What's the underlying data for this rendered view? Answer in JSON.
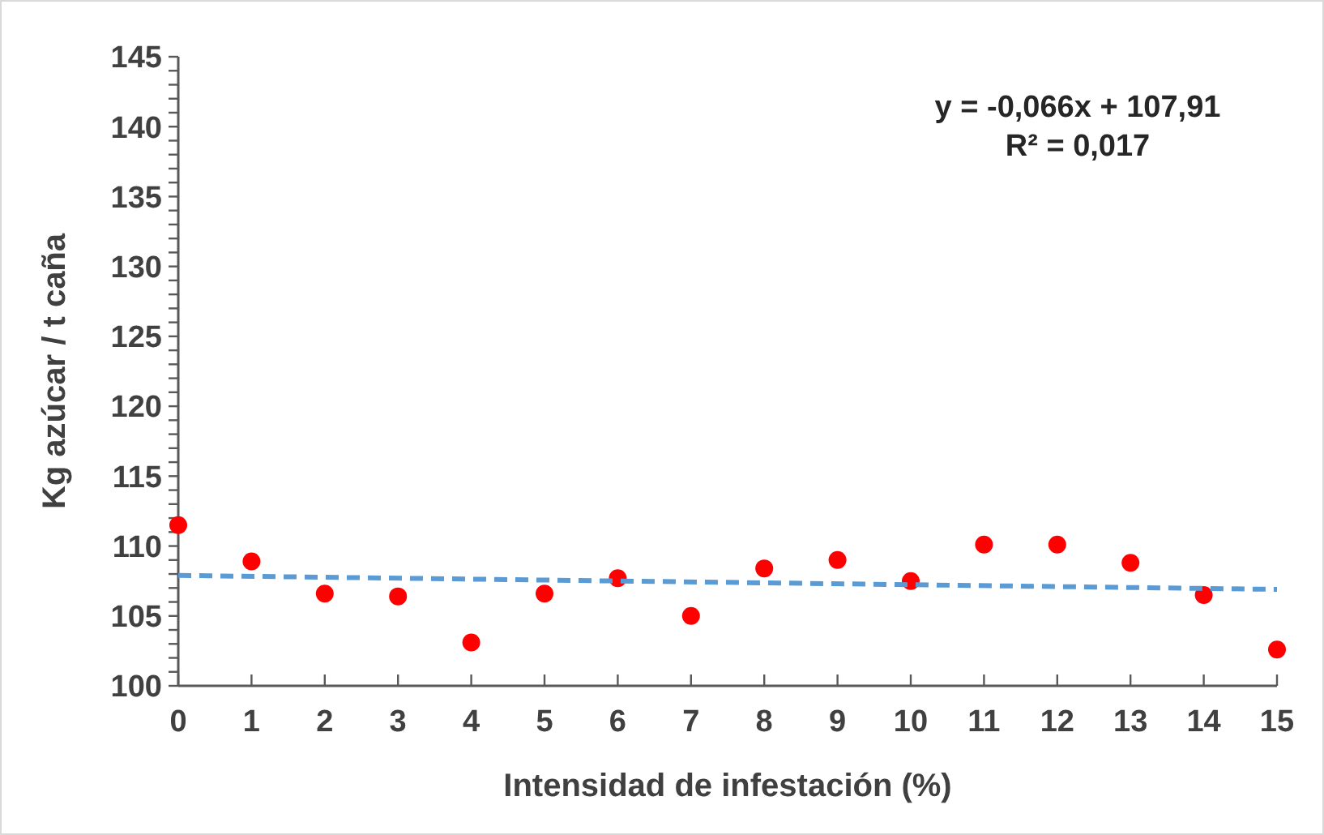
{
  "chart_data": {
    "type": "scatter",
    "xlabel": "Intensidad de infestación (%)",
    "ylabel": "Kg azúcar / t caña",
    "x": [
      0,
      1,
      2,
      3,
      4,
      5,
      6,
      7,
      8,
      9,
      10,
      11,
      12,
      13,
      14,
      15
    ],
    "series": [
      {
        "color": "#ff0000",
        "marker": "circle",
        "values": [
          111.5,
          108.9,
          106.6,
          106.4,
          103.1,
          106.6,
          107.7,
          105.0,
          108.4,
          109.0,
          107.5,
          110.1,
          110.1,
          108.8,
          106.5,
          102.6
        ]
      },
      {
        "type": "line",
        "color": "#5b9bd5",
        "line_style": "dashed",
        "marker": "none",
        "x": [
          0,
          15
        ],
        "values": [
          107.9,
          106.9
        ]
      }
    ],
    "annotations": [
      "y = -0,066x + 107,91",
      "R² = 0,017"
    ],
    "xlim": [
      0,
      15
    ],
    "xticks": [
      0,
      1,
      2,
      3,
      4,
      5,
      6,
      7,
      8,
      9,
      10,
      11,
      12,
      13,
      14,
      15
    ],
    "ylim": [
      100,
      145
    ],
    "yticks": [
      100,
      {
        "value": 101,
        "label": null
      },
      {
        "value": 102,
        "label": null
      },
      {
        "value": 103,
        "label": null
      },
      {
        "value": 104,
        "label": null
      },
      105,
      {
        "value": 106,
        "label": null
      },
      {
        "value": 107,
        "label": null
      },
      {
        "value": 108,
        "label": null
      },
      {
        "value": 109,
        "label": null
      },
      110,
      {
        "value": 111,
        "label": null
      },
      {
        "value": 112,
        "label": null
      },
      {
        "value": 113,
        "label": null
      },
      {
        "value": 114,
        "label": null
      },
      115,
      {
        "value": 116,
        "label": null
      },
      {
        "value": 117,
        "label": null
      },
      {
        "value": 118,
        "label": null
      },
      {
        "value": 119,
        "label": null
      },
      120,
      {
        "value": 121,
        "label": null
      },
      {
        "value": 122,
        "label": null
      },
      {
        "value": 123,
        "label": null
      },
      {
        "value": 124,
        "label": null
      },
      125,
      {
        "value": 126,
        "label": null
      },
      {
        "value": 127,
        "label": null
      },
      {
        "value": 128,
        "label": null
      },
      {
        "value": 129,
        "label": null
      },
      130,
      {
        "value": 131,
        "label": null
      },
      {
        "value": 132,
        "label": null
      },
      {
        "value": 133,
        "label": null
      },
      {
        "value": 134,
        "label": null
      },
      135,
      {
        "value": 136,
        "label": null
      },
      {
        "value": 137,
        "label": null
      },
      {
        "value": 138,
        "label": null
      },
      {
        "value": 139,
        "label": null
      },
      140,
      {
        "value": 141,
        "label": null
      },
      {
        "value": 142,
        "label": null
      },
      {
        "value": 143,
        "label": null
      },
      {
        "value": 144,
        "label": null
      },
      145
    ],
    "grid": false
  }
}
